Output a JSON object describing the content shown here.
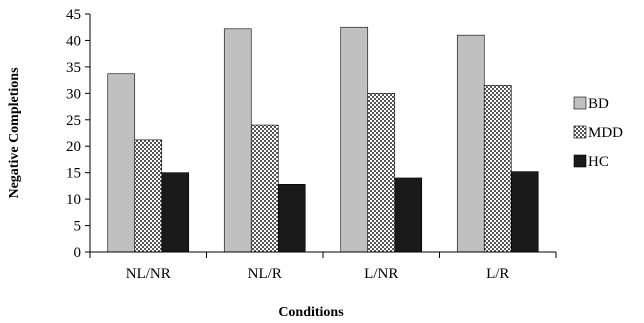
{
  "chart_data": {
    "type": "bar",
    "xlabel": "Conditions",
    "ylabel": "Negative Completions",
    "ylim": [
      0,
      45
    ],
    "yticks": [
      0,
      5,
      10,
      15,
      20,
      25,
      30,
      35,
      40,
      45
    ],
    "grid": false,
    "legend_position": "right",
    "categories": [
      "NL/NR",
      "NL/R",
      "L/NR",
      "L/R"
    ],
    "series": [
      {
        "name": "BD",
        "values": [
          33.7,
          42.2,
          42.5,
          41.0
        ],
        "color": "#c0c0c0",
        "pattern": "solid"
      },
      {
        "name": "MDD",
        "values": [
          21.2,
          24.0,
          30.0,
          31.5
        ],
        "color": "#808080",
        "pattern": "checker"
      },
      {
        "name": "HC",
        "values": [
          15.0,
          12.8,
          14.0,
          15.2
        ],
        "color": "#1a1a1a",
        "pattern": "solid"
      }
    ]
  }
}
